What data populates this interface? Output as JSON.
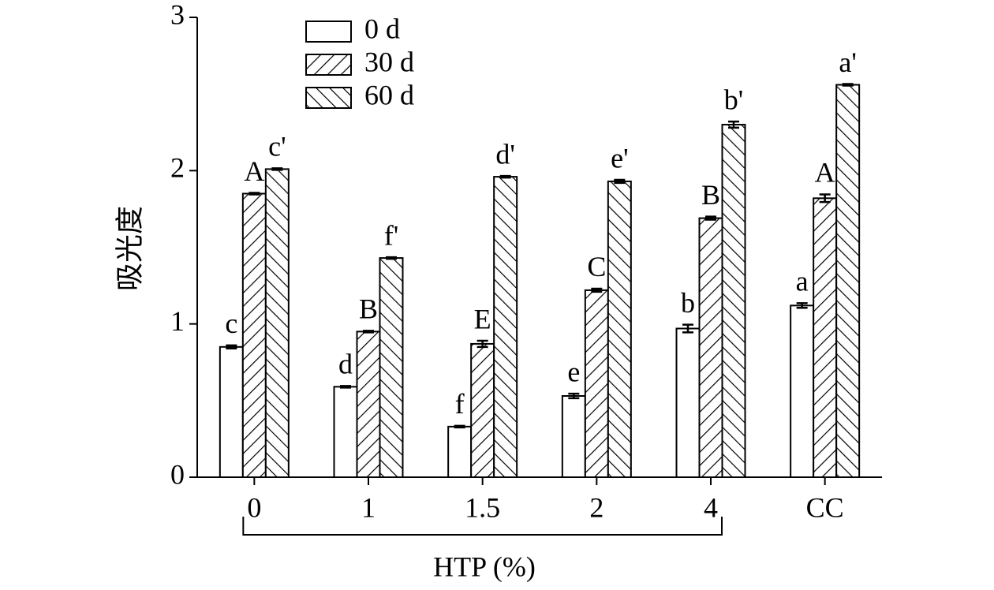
{
  "chart_data": {
    "type": "bar",
    "y_label": "吸光度",
    "x_label": "HTP (%)",
    "categories": [
      "0",
      "1",
      "1.5",
      "2",
      "4",
      "CC"
    ],
    "series": [
      {
        "name": "0 d",
        "color": "#ffffff",
        "hatch": "none",
        "values": [
          0.85,
          0.59,
          0.33,
          0.53,
          0.97,
          1.12
        ],
        "errors": [
          0.01,
          0.005,
          0.005,
          0.015,
          0.025,
          0.015
        ],
        "labels": [
          "c",
          "d",
          "f",
          "e",
          "b",
          "a"
        ]
      },
      {
        "name": "30 d",
        "color": "#ffffff",
        "hatch": "forward",
        "values": [
          1.85,
          0.95,
          0.87,
          1.22,
          1.69,
          1.82
        ],
        "errors": [
          0.005,
          0.005,
          0.02,
          0.01,
          0.01,
          0.025
        ],
        "labels": [
          "A",
          "B",
          "E",
          "C",
          "B",
          "A"
        ]
      },
      {
        "name": "60 d",
        "color": "#ffffff",
        "hatch": "back",
        "values": [
          2.01,
          1.43,
          1.96,
          1.93,
          2.3,
          2.56
        ],
        "errors": [
          0.005,
          0.005,
          0.005,
          0.01,
          0.02,
          0.005
        ],
        "labels": [
          "c'",
          "f'",
          "d'",
          "e'",
          "b'",
          "a'"
        ]
      }
    ],
    "ylim": [
      0,
      3
    ],
    "yticks": [
      0,
      1,
      2,
      3
    ],
    "grid": false,
    "legend": "upper left"
  }
}
